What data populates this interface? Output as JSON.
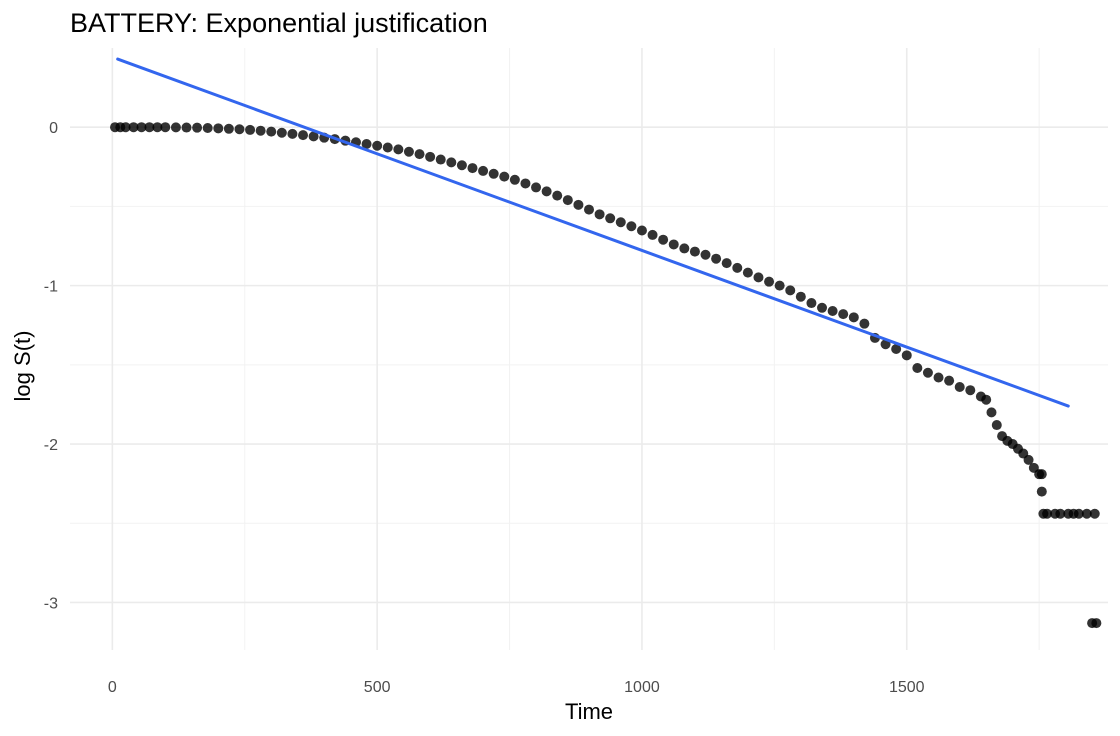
{
  "chart_data": {
    "type": "scatter",
    "title": "BATTERY: Exponential justification",
    "xlabel": "Time",
    "ylabel": "log S(t)",
    "xlim": [
      -80,
      1880
    ],
    "ylim": [
      -3.3,
      0.5
    ],
    "x_ticks": [
      0,
      500,
      1000,
      1500
    ],
    "x_tick_labels": [
      "0",
      "500",
      "1000",
      "1500"
    ],
    "y_ticks": [
      -3,
      -2,
      -1,
      0
    ],
    "y_tick_labels": [
      "-3",
      "-2",
      "-1",
      "0"
    ],
    "grid": true,
    "legend": "none",
    "colors": {
      "points": "#000000",
      "fit_line": "#3366ee"
    },
    "series": [
      {
        "type": "scatter",
        "points": [
          [
            5,
            0.0
          ],
          [
            15,
            0.0
          ],
          [
            25,
            0.0
          ],
          [
            40,
            0.0
          ],
          [
            55,
            0.0
          ],
          [
            70,
            0.0
          ],
          [
            85,
            0.0
          ],
          [
            100,
            0.0
          ],
          [
            120,
            -0.001
          ],
          [
            140,
            -0.002
          ],
          [
            160,
            -0.003
          ],
          [
            180,
            -0.005
          ],
          [
            200,
            -0.007
          ],
          [
            220,
            -0.01
          ],
          [
            240,
            -0.013
          ],
          [
            260,
            -0.017
          ],
          [
            280,
            -0.022
          ],
          [
            300,
            -0.028
          ],
          [
            320,
            -0.035
          ],
          [
            340,
            -0.042
          ],
          [
            360,
            -0.05
          ],
          [
            380,
            -0.058
          ],
          [
            400,
            -0.066
          ],
          [
            420,
            -0.075
          ],
          [
            440,
            -0.085
          ],
          [
            460,
            -0.095
          ],
          [
            480,
            -0.106
          ],
          [
            500,
            -0.117
          ],
          [
            520,
            -0.128
          ],
          [
            540,
            -0.14
          ],
          [
            560,
            -0.155
          ],
          [
            580,
            -0.17
          ],
          [
            600,
            -0.187
          ],
          [
            620,
            -0.204
          ],
          [
            640,
            -0.222
          ],
          [
            660,
            -0.24
          ],
          [
            680,
            -0.258
          ],
          [
            700,
            -0.276
          ],
          [
            720,
            -0.294
          ],
          [
            740,
            -0.312
          ],
          [
            760,
            -0.332
          ],
          [
            780,
            -0.355
          ],
          [
            800,
            -0.38
          ],
          [
            820,
            -0.405
          ],
          [
            840,
            -0.432
          ],
          [
            860,
            -0.46
          ],
          [
            880,
            -0.49
          ],
          [
            900,
            -0.52
          ],
          [
            920,
            -0.55
          ],
          [
            940,
            -0.575
          ],
          [
            960,
            -0.6
          ],
          [
            980,
            -0.625
          ],
          [
            1000,
            -0.652
          ],
          [
            1020,
            -0.68
          ],
          [
            1040,
            -0.71
          ],
          [
            1060,
            -0.74
          ],
          [
            1080,
            -0.765
          ],
          [
            1100,
            -0.785
          ],
          [
            1120,
            -0.805
          ],
          [
            1140,
            -0.83
          ],
          [
            1160,
            -0.858
          ],
          [
            1180,
            -0.888
          ],
          [
            1200,
            -0.918
          ],
          [
            1220,
            -0.948
          ],
          [
            1240,
            -0.975
          ],
          [
            1260,
            -1.0
          ],
          [
            1280,
            -1.03
          ],
          [
            1300,
            -1.07
          ],
          [
            1320,
            -1.11
          ],
          [
            1340,
            -1.14
          ],
          [
            1360,
            -1.16
          ],
          [
            1380,
            -1.18
          ],
          [
            1400,
            -1.2
          ],
          [
            1420,
            -1.24
          ],
          [
            1440,
            -1.33
          ],
          [
            1460,
            -1.37
          ],
          [
            1480,
            -1.4
          ],
          [
            1500,
            -1.44
          ],
          [
            1520,
            -1.52
          ],
          [
            1540,
            -1.55
          ],
          [
            1560,
            -1.58
          ],
          [
            1580,
            -1.6
          ],
          [
            1600,
            -1.64
          ],
          [
            1620,
            -1.66
          ],
          [
            1640,
            -1.7
          ],
          [
            1650,
            -1.72
          ],
          [
            1660,
            -1.8
          ],
          [
            1670,
            -1.88
          ],
          [
            1680,
            -1.95
          ],
          [
            1690,
            -1.98
          ],
          [
            1700,
            -2.0
          ],
          [
            1710,
            -2.03
          ],
          [
            1720,
            -2.06
          ],
          [
            1730,
            -2.1
          ],
          [
            1740,
            -2.15
          ],
          [
            1750,
            -2.19
          ],
          [
            1755,
            -2.19
          ],
          [
            1755,
            -2.3
          ],
          [
            1758,
            -2.44
          ],
          [
            1765,
            -2.44
          ],
          [
            1780,
            -2.44
          ],
          [
            1790,
            -2.44
          ],
          [
            1805,
            -2.44
          ],
          [
            1815,
            -2.44
          ],
          [
            1825,
            -2.44
          ],
          [
            1840,
            -2.44
          ],
          [
            1855,
            -2.44
          ],
          [
            1850,
            -3.13
          ],
          [
            1858,
            -3.13
          ]
        ]
      },
      {
        "type": "line",
        "x": [
          10,
          1805
        ],
        "y": [
          0.43,
          -1.76
        ]
      }
    ]
  }
}
